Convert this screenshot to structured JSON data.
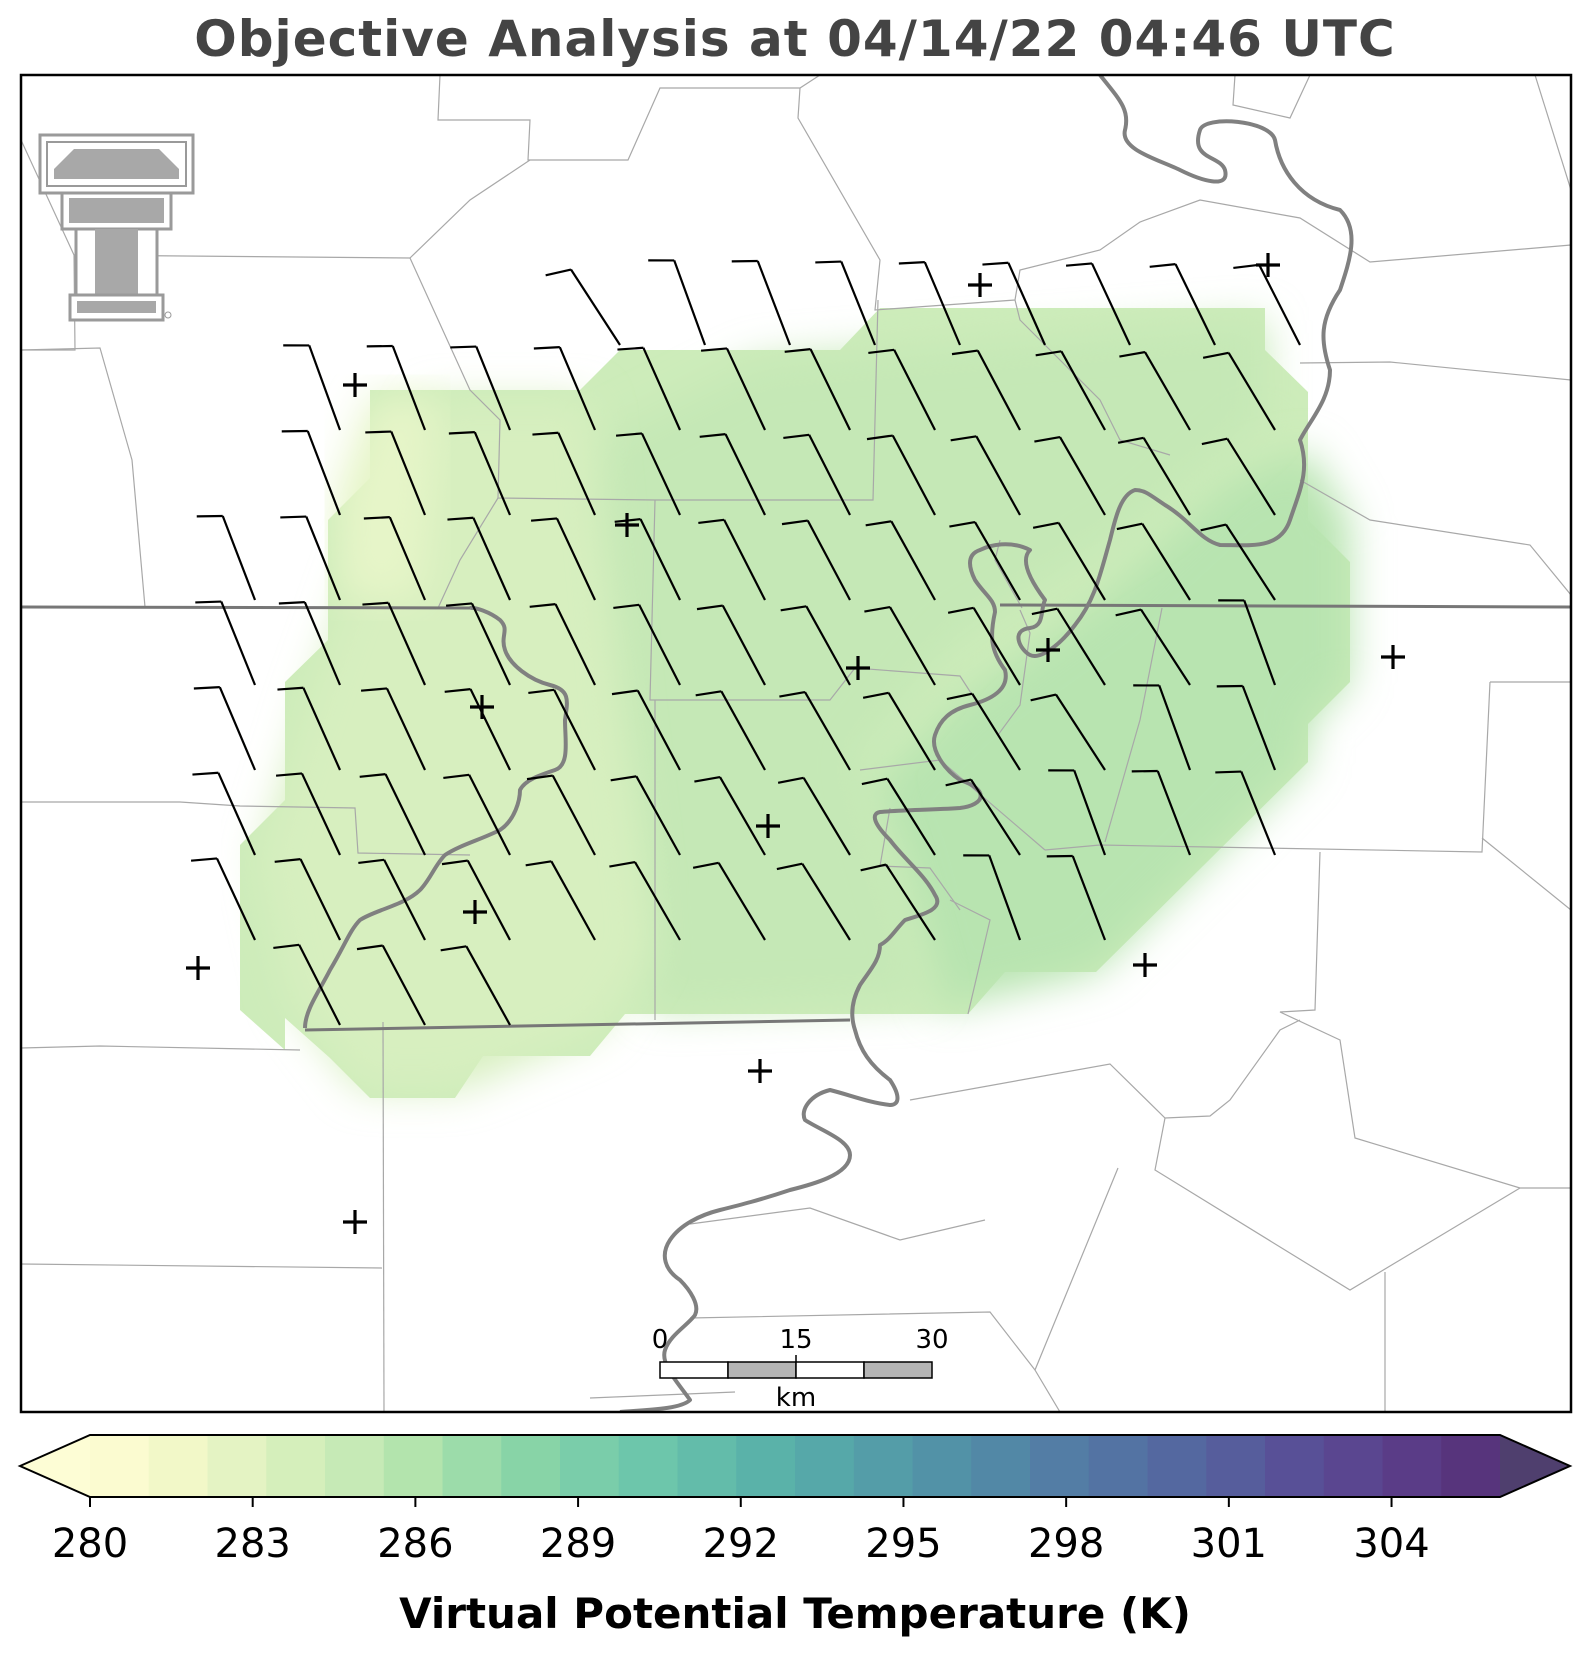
{
  "title": "Objective Analysis at 04/14/22 04:46 UTC",
  "colorbar": {
    "label": "Virtual Potential Temperature (K)",
    "min": 280,
    "max": 306,
    "ticks": [
      "280",
      "283",
      "286",
      "289",
      "292",
      "295",
      "298",
      "301",
      "304"
    ],
    "colors": [
      "#fbfbd0",
      "#f2f8c8",
      "#e4f3c3",
      "#d5efbb",
      "#c6eab6",
      "#b3e4ad",
      "#9cdcaa",
      "#88d4a7",
      "#7acdaa",
      "#6dc6ab",
      "#63bcaa",
      "#5ab2a9",
      "#56a8a9",
      "#549da8",
      "#5292a7",
      "#5288a6",
      "#537da5",
      "#5373a3",
      "#5468a0",
      "#565d9c",
      "#585097",
      "#5a4690",
      "#5a3c87",
      "#57347c"
    ],
    "extend_low_color": "#fdfdd5",
    "extend_high_color": "#4f3f6e"
  },
  "scale_bar": {
    "labels": [
      "0",
      "15",
      "30"
    ],
    "unit": "km"
  },
  "logo": {
    "name": "texas-tech-double-t"
  },
  "colors": {
    "frame": "#000000",
    "county_line": "#a0a0a0",
    "river": "#808080",
    "barb": "#000000"
  }
}
